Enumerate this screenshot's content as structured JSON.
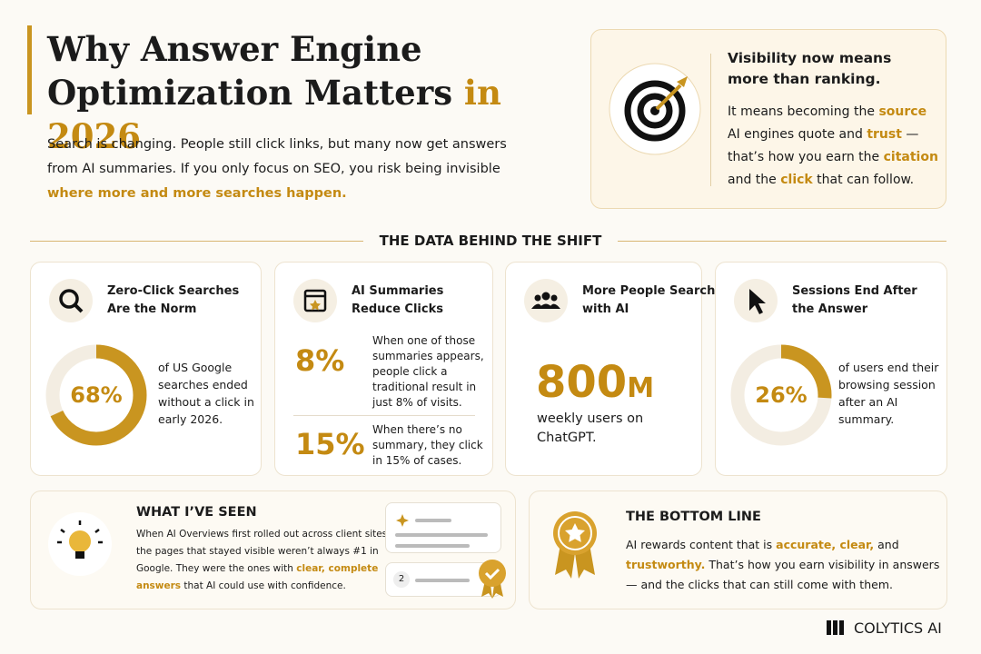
{
  "header": {
    "title_main": "Why Answer Engine Optimization Matters",
    "title_accent": "in 2026",
    "intro": [
      {
        "text": "Search is changing. People still click links, but many now get answers from AI summaries. If you only focus on SEO, you risk being invisible "
      },
      {
        "text": "where more and more searches happen.",
        "accent": true
      }
    ]
  },
  "callout": {
    "heading": "Visibility now means more than ranking.",
    "body": [
      {
        "text": "It means becoming the "
      },
      {
        "text": "source",
        "accent": true
      },
      {
        "text": " AI engines quote and "
      },
      {
        "text": "trust",
        "accent": true
      },
      {
        "text": " — that’s how you earn the "
      },
      {
        "text": "citation",
        "accent": true
      },
      {
        "text": " and the "
      },
      {
        "text": "click",
        "accent": true
      },
      {
        "text": " that can follow."
      }
    ]
  },
  "section_title": "THE DATA BEHIND THE SHIFT",
  "cards": [
    {
      "heading": "Zero-Click Searches Are the Norm",
      "value": 68,
      "label": "68%",
      "text": "of US Google searches ended without a click in early 2026."
    },
    {
      "heading": "AI Summaries Reduce Clicks",
      "stats": [
        {
          "label": "8%",
          "text": "When one of those summaries appears, people click a traditional result in just 8% of visits."
        },
        {
          "label": "15%",
          "text": "When there’s no summary, they click in 15% of cases."
        }
      ]
    },
    {
      "heading": "More People Search with AI",
      "number": "800",
      "unit": "M",
      "text": "weekly users on ChatGPT."
    },
    {
      "heading": "Sessions End After the Answer",
      "value": 26,
      "label": "26%",
      "text": "of users end their browsing session after an AI summary."
    }
  ],
  "seen": {
    "heading": "WHAT I’VE SEEN",
    "body": [
      {
        "text": "When AI Overviews first rolled out across client sites, the pages that stayed visible weren’t always #1 in Google. They were the ones with "
      },
      {
        "text": "clear, complete answers",
        "accent": true
      },
      {
        "text": " that AI could use with confidence."
      }
    ],
    "badge": "2"
  },
  "bottom_line": {
    "heading": "THE BOTTOM LINE",
    "body": [
      {
        "text": "AI rewards content that is "
      },
      {
        "text": "accurate, clear,",
        "accent": true
      },
      {
        "text": " and "
      },
      {
        "text": "trustworthy.",
        "accent": true
      },
      {
        "text": " That’s how you earn visibility in answers — and the clicks that can still come with them."
      }
    ]
  },
  "brand": "COLYTICS AI"
}
